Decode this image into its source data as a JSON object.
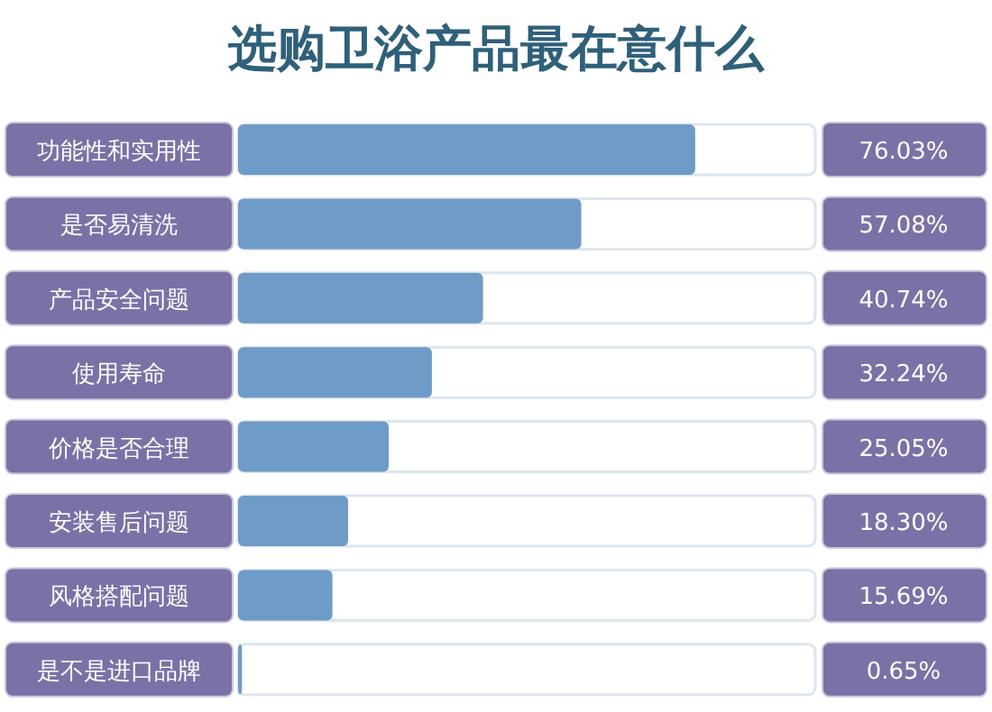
{
  "chart_data": {
    "type": "bar",
    "orientation": "horizontal",
    "title": "选购卫浴产品最在意什么",
    "categories": [
      "功能性和实用性",
      "是否易清洗",
      "产品安全问题",
      "使用寿命",
      "价格是否合理",
      "安装售后问题",
      "风格搭配问题",
      "是不是进口品牌"
    ],
    "values": [
      76.03,
      57.08,
      40.74,
      32.24,
      25.05,
      18.3,
      15.69,
      0.65
    ],
    "value_labels": [
      "76.03%",
      "57.08%",
      "40.74%",
      "32.24%",
      "25.05%",
      "18.30%",
      "15.69%",
      "0.65%"
    ],
    "color": "#6f9bc8",
    "xlim": [
      0,
      96
    ]
  }
}
